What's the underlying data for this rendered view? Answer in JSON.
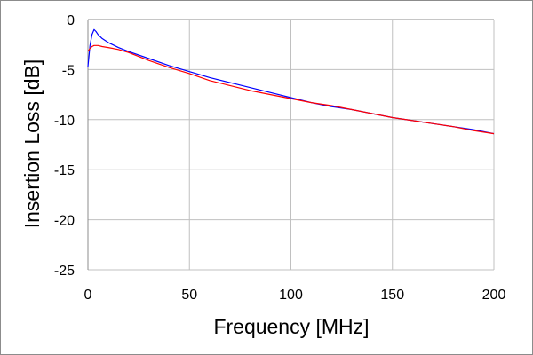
{
  "chart_data": {
    "type": "line",
    "title": "",
    "xlabel": "Frequency [MHz]",
    "ylabel": "Insertion Loss [dB]",
    "xlim": [
      0,
      200
    ],
    "ylim": [
      -25,
      0
    ],
    "xticks": [
      0,
      50,
      100,
      150,
      200
    ],
    "yticks": [
      0,
      -5,
      -10,
      -15,
      -20,
      -25
    ],
    "grid": true,
    "legend": "none",
    "series": [
      {
        "color": "#0000ff",
        "x": [
          0,
          1,
          2,
          3,
          4,
          5,
          7,
          10,
          15,
          20,
          30,
          40,
          50,
          60,
          70,
          80,
          90,
          100,
          110,
          120,
          130,
          140,
          150,
          160,
          170,
          180,
          190,
          200
        ],
        "y": [
          -4.7,
          -2.6,
          -1.5,
          -1.0,
          -1.2,
          -1.5,
          -1.9,
          -2.3,
          -2.8,
          -3.2,
          -3.9,
          -4.6,
          -5.2,
          -5.8,
          -6.3,
          -6.8,
          -7.3,
          -7.8,
          -8.3,
          -8.7,
          -9.0,
          -9.4,
          -9.8,
          -10.1,
          -10.4,
          -10.7,
          -11.0,
          -11.4
        ]
      },
      {
        "color": "#ff0000",
        "x": [
          0,
          1,
          2,
          3,
          5,
          7,
          10,
          15,
          20,
          30,
          40,
          50,
          60,
          70,
          80,
          90,
          100,
          110,
          120,
          130,
          140,
          150,
          160,
          170,
          180,
          190,
          200
        ],
        "y": [
          -3.2,
          -2.9,
          -2.7,
          -2.6,
          -2.6,
          -2.7,
          -2.8,
          -3.0,
          -3.3,
          -4.1,
          -4.8,
          -5.4,
          -6.1,
          -6.6,
          -7.1,
          -7.5,
          -7.9,
          -8.3,
          -8.6,
          -9.0,
          -9.4,
          -9.8,
          -10.1,
          -10.4,
          -10.7,
          -11.1,
          -11.4
        ]
      }
    ]
  }
}
